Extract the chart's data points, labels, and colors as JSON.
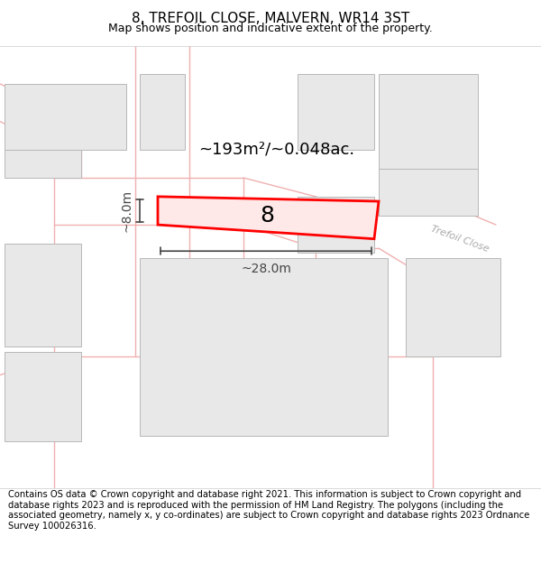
{
  "title": "8, TREFOIL CLOSE, MALVERN, WR14 3ST",
  "subtitle": "Map shows position and indicative extent of the property.",
  "footer": "Contains OS data © Crown copyright and database right 2021. This information is subject to Crown copyright and database rights 2023 and is reproduced with the permission of HM Land Registry. The polygons (including the associated geometry, namely x, y co-ordinates) are subject to Crown copyright and database rights 2023 Ordnance Survey 100026316.",
  "background_color": "#ffffff",
  "map_bg": "#ffffff",
  "title_fontsize": 11,
  "subtitle_fontsize": 9,
  "footer_fontsize": 7.2,
  "area_text": "~193m²/~0.048ac.",
  "plot_number": "8",
  "width_label": "~28.0m",
  "height_label": "~8.0m",
  "road_label": "Trefoil Close",
  "plot_color": "#ff0000",
  "plot_fill": "#ffe8e8",
  "building_fill": "#e8e8e8",
  "building_edge": "#b8b8b8",
  "road_color": "#f0b0b0",
  "dim_color": "#444444"
}
